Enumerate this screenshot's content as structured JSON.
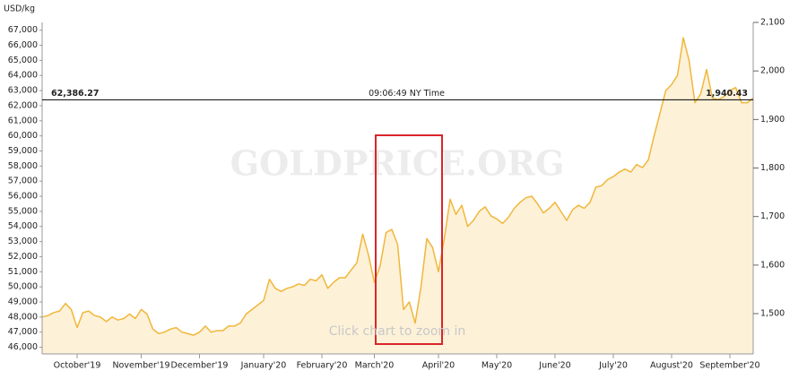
{
  "chart_data": {
    "type": "line",
    "y_axis_label": "USD/kg",
    "watermark": "GOLDPRICE.ORG",
    "hint": "Click chart to zoom in",
    "color": "#f0b73c",
    "fill": "#fdf1d8",
    "categories": [
      null,
      null,
      null,
      null,
      null,
      null,
      "October'19",
      null,
      null,
      null,
      null,
      null,
      null,
      null,
      null,
      null,
      null,
      "November'19",
      null,
      null,
      null,
      null,
      null,
      null,
      null,
      null,
      null,
      "December'19",
      null,
      null,
      null,
      null,
      null,
      null,
      null,
      null,
      null,
      null,
      "January'20",
      null,
      null,
      null,
      null,
      null,
      null,
      null,
      null,
      null,
      "February'20",
      null,
      null,
      null,
      null,
      null,
      null,
      null,
      null,
      "March'20",
      null,
      null,
      null,
      null,
      null,
      null,
      null,
      null,
      null,
      null,
      "April'20",
      null,
      null,
      null,
      null,
      null,
      null,
      null,
      null,
      null,
      "May'20",
      null,
      null,
      null,
      null,
      null,
      null,
      null,
      null,
      null,
      "June'20",
      null,
      null,
      null,
      null,
      null,
      null,
      null,
      null,
      null,
      "July'20",
      null,
      null,
      null,
      null,
      null,
      null,
      null,
      null,
      null,
      "August'20",
      null,
      null,
      null,
      null,
      null,
      null,
      null,
      null,
      null,
      "September'20",
      null,
      null,
      null,
      null
    ],
    "values": [
      48000,
      48100,
      48300,
      48400,
      48900,
      48500,
      47300,
      48300,
      48400,
      48100,
      48000,
      47700,
      48000,
      47800,
      47900,
      48200,
      47900,
      48500,
      48200,
      47200,
      46900,
      47000,
      47200,
      47300,
      47000,
      46900,
      46800,
      47000,
      47400,
      47000,
      47100,
      47100,
      47400,
      47400,
      47600,
      48200,
      48500,
      48800,
      49100,
      50500,
      49900,
      49700,
      49900,
      50000,
      50200,
      50100,
      50500,
      50400,
      50800,
      49900,
      50300,
      50600,
      50600,
      51100,
      51600,
      53500,
      52100,
      50300,
      51400,
      53600,
      53800,
      52800,
      48500,
      49000,
      47600,
      50000,
      53200,
      52600,
      51000,
      53200,
      55800,
      54800,
      55400,
      54000,
      54400,
      55000,
      55300,
      54700,
      54500,
      54200,
      54600,
      55200,
      55600,
      55900,
      56000,
      55500,
      54900,
      55200,
      55600,
      55000,
      54400,
      55100,
      55400,
      55200,
      55600,
      56600,
      56700,
      57100,
      57300,
      57600,
      57800,
      57600,
      58100,
      57900,
      58400,
      60000,
      61500,
      63000,
      63400,
      64000,
      66500,
      65000,
      62200,
      62800,
      64400,
      62500,
      62400,
      62600,
      63000,
      63200,
      62200,
      62200,
      62500
    ],
    "ylim": [
      45557,
      67516
    ],
    "yticks": [
      {
        "value": 46000,
        "label": "46,000"
      },
      {
        "value": 47000,
        "label": "47,000"
      },
      {
        "value": 48000,
        "label": "48,000"
      },
      {
        "value": 49000,
        "label": "49,000"
      },
      {
        "value": 50000,
        "label": "50,000"
      },
      {
        "value": 51000,
        "label": "51,000"
      },
      {
        "value": 52000,
        "label": "52,000"
      },
      {
        "value": 53000,
        "label": "53,000"
      },
      {
        "value": 54000,
        "label": "54,000"
      },
      {
        "value": 55000,
        "label": "55,000"
      },
      {
        "value": 56000,
        "label": "56,000"
      },
      {
        "value": 57000,
        "label": "57,000"
      },
      {
        "value": 58000,
        "label": "58,000"
      },
      {
        "value": 59000,
        "label": "59,000"
      },
      {
        "value": 60000,
        "label": "60,000"
      },
      {
        "value": 61000,
        "label": "61,000"
      },
      {
        "value": 62000,
        "label": "62,000"
      },
      {
        "value": 63000,
        "label": "63,000"
      },
      {
        "value": 64000,
        "label": "64,000"
      },
      {
        "value": 65000,
        "label": "65,000"
      },
      {
        "value": 66000,
        "label": "66,000"
      },
      {
        "value": 67000,
        "label": "67,000"
      }
    ],
    "y2lim": [
      1417,
      2100
    ],
    "y2ticks": [
      {
        "value": 1500,
        "label": "1,500"
      },
      {
        "value": 1600,
        "label": "1,600"
      },
      {
        "value": 1700,
        "label": "1,700"
      },
      {
        "value": 1800,
        "label": "1,800"
      },
      {
        "value": 1900,
        "label": "1,900"
      },
      {
        "value": 2000,
        "label": "2,000"
      },
      {
        "value": 2100,
        "label": "2,100"
      }
    ],
    "crosshair": {
      "value": 62386.27,
      "label": "62,386.27",
      "y2_value": 1940.43,
      "y2_label": "1,940.43",
      "time": "09:06:49 NY Time"
    }
  }
}
